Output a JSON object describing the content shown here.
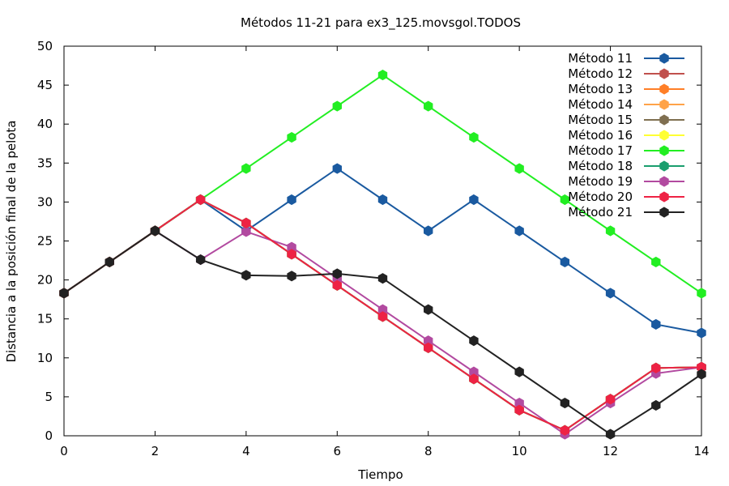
{
  "chart_data": {
    "type": "line",
    "title": "Métodos 11-21 para ex3_125.movsgol.TODOS",
    "xlabel": "Tiempo",
    "ylabel": "Distancia a la posición final de la pelota",
    "xlim": [
      0,
      14
    ],
    "ylim": [
      0,
      50
    ],
    "xticks": [
      0,
      2,
      4,
      6,
      8,
      10,
      12,
      14
    ],
    "yticks": [
      0,
      5,
      10,
      15,
      20,
      25,
      30,
      35,
      40,
      45,
      50
    ],
    "grid": false,
    "legend_position": "top-right",
    "series": [
      {
        "name": "Método 11",
        "color": "#1a5aa0",
        "points": [
          [
            0,
            18.3
          ],
          [
            1,
            22.3
          ],
          [
            2,
            26.3
          ],
          [
            3,
            30.3
          ],
          [
            4,
            26.3
          ],
          [
            5,
            30.3
          ],
          [
            6,
            34.3
          ],
          [
            7,
            30.3
          ],
          [
            8,
            26.3
          ],
          [
            9,
            30.3
          ],
          [
            10,
            26.3
          ],
          [
            11,
            22.3
          ],
          [
            12,
            18.3
          ],
          [
            13,
            14.3
          ],
          [
            14,
            13.2
          ]
        ]
      },
      {
        "name": "Método 12",
        "color": "#c0504d",
        "points": [
          [
            0,
            18.3
          ],
          [
            1,
            22.3
          ],
          [
            2,
            26.3
          ],
          [
            3,
            30.3
          ],
          [
            4,
            27.3
          ],
          [
            5,
            23.3
          ],
          [
            6,
            19.3
          ],
          [
            7,
            15.3
          ],
          [
            8,
            11.3
          ],
          [
            9,
            7.3
          ],
          [
            10,
            3.3
          ],
          [
            11,
            0.7
          ],
          [
            12,
            4.7
          ],
          [
            13,
            8.7
          ],
          [
            14,
            8.8
          ]
        ]
      },
      {
        "name": "Método 13",
        "color": "#ff7f27",
        "points": [
          [
            0,
            18.3
          ],
          [
            1,
            22.3
          ],
          [
            2,
            26.3
          ],
          [
            3,
            30.3
          ],
          [
            4,
            27.3
          ],
          [
            5,
            23.3
          ],
          [
            6,
            19.3
          ],
          [
            7,
            15.3
          ],
          [
            8,
            11.3
          ],
          [
            9,
            7.3
          ],
          [
            10,
            3.3
          ],
          [
            11,
            0.7
          ],
          [
            12,
            4.7
          ],
          [
            13,
            8.7
          ],
          [
            14,
            8.8
          ]
        ]
      },
      {
        "name": "Método 14",
        "color": "#ffa348",
        "points": [
          [
            0,
            18.3
          ],
          [
            1,
            22.3
          ],
          [
            2,
            26.3
          ],
          [
            3,
            30.3
          ],
          [
            4,
            27.3
          ],
          [
            5,
            23.3
          ],
          [
            6,
            19.3
          ],
          [
            7,
            15.3
          ],
          [
            8,
            11.3
          ],
          [
            9,
            7.3
          ],
          [
            10,
            3.3
          ],
          [
            11,
            0.7
          ],
          [
            12,
            4.7
          ],
          [
            13,
            8.7
          ],
          [
            14,
            8.8
          ]
        ]
      },
      {
        "name": "Método 15",
        "color": "#7f6f50",
        "points": [
          [
            0,
            18.3
          ],
          [
            1,
            22.3
          ],
          [
            2,
            26.3
          ],
          [
            3,
            30.3
          ],
          [
            4,
            27.3
          ],
          [
            5,
            23.3
          ],
          [
            6,
            19.3
          ],
          [
            7,
            15.3
          ],
          [
            8,
            11.3
          ],
          [
            9,
            7.3
          ],
          [
            10,
            3.3
          ],
          [
            11,
            0.7
          ],
          [
            12,
            4.7
          ],
          [
            13,
            8.7
          ],
          [
            14,
            8.8
          ]
        ]
      },
      {
        "name": "Método 16",
        "color": "#ffff33",
        "points": [
          [
            0,
            18.3
          ],
          [
            1,
            22.3
          ],
          [
            2,
            26.3
          ],
          [
            3,
            30.3
          ],
          [
            4,
            27.3
          ],
          [
            5,
            23.3
          ],
          [
            6,
            19.3
          ],
          [
            7,
            15.3
          ],
          [
            8,
            11.3
          ],
          [
            9,
            7.3
          ],
          [
            10,
            3.3
          ],
          [
            11,
            0.7
          ],
          [
            12,
            4.7
          ],
          [
            13,
            8.7
          ],
          [
            14,
            8.8
          ]
        ]
      },
      {
        "name": "Método 17",
        "color": "#22ee22",
        "points": [
          [
            0,
            18.3
          ],
          [
            1,
            22.3
          ],
          [
            2,
            26.3
          ],
          [
            3,
            30.3
          ],
          [
            4,
            34.3
          ],
          [
            5,
            38.3
          ],
          [
            6,
            42.3
          ],
          [
            7,
            46.3
          ],
          [
            8,
            42.3
          ],
          [
            9,
            38.3
          ],
          [
            10,
            34.3
          ],
          [
            11,
            30.3
          ],
          [
            12,
            26.3
          ],
          [
            13,
            22.3
          ],
          [
            14,
            18.3
          ]
        ]
      },
      {
        "name": "Método 18",
        "color": "#1a9e6e",
        "points": [
          [
            0,
            18.3
          ],
          [
            1,
            22.3
          ],
          [
            2,
            26.3
          ],
          [
            3,
            30.3
          ],
          [
            4,
            27.3
          ],
          [
            5,
            23.3
          ],
          [
            6,
            19.3
          ],
          [
            7,
            15.3
          ],
          [
            8,
            11.3
          ],
          [
            9,
            7.3
          ],
          [
            10,
            3.3
          ],
          [
            11,
            0.7
          ],
          [
            12,
            4.7
          ],
          [
            13,
            8.7
          ],
          [
            14,
            8.8
          ]
        ]
      },
      {
        "name": "Método 19",
        "color": "#b24aa0",
        "points": [
          [
            0,
            18.3
          ],
          [
            1,
            22.3
          ],
          [
            2,
            26.3
          ],
          [
            3,
            22.6
          ],
          [
            4,
            26.2
          ],
          [
            5,
            24.2
          ],
          [
            6,
            20.2
          ],
          [
            7,
            16.2
          ],
          [
            8,
            12.2
          ],
          [
            9,
            8.2
          ],
          [
            10,
            4.2
          ],
          [
            11,
            0.2
          ],
          [
            12,
            4.2
          ],
          [
            13,
            8.0
          ],
          [
            14,
            8.8
          ]
        ]
      },
      {
        "name": "Método 20",
        "color": "#ee2244",
        "points": [
          [
            0,
            18.3
          ],
          [
            1,
            22.3
          ],
          [
            2,
            26.3
          ],
          [
            3,
            30.3
          ],
          [
            4,
            27.3
          ],
          [
            5,
            23.3
          ],
          [
            6,
            19.3
          ],
          [
            7,
            15.3
          ],
          [
            8,
            11.3
          ],
          [
            9,
            7.3
          ],
          [
            10,
            3.3
          ],
          [
            11,
            0.7
          ],
          [
            12,
            4.7
          ],
          [
            13,
            8.7
          ],
          [
            14,
            8.8
          ]
        ]
      },
      {
        "name": "Método 21",
        "color": "#222222",
        "points": [
          [
            0,
            18.3
          ],
          [
            1,
            22.3
          ],
          [
            2,
            26.3
          ],
          [
            3,
            22.6
          ],
          [
            4,
            20.6
          ],
          [
            5,
            20.5
          ],
          [
            6,
            20.8
          ],
          [
            7,
            20.2
          ],
          [
            8,
            16.2
          ],
          [
            9,
            12.2
          ],
          [
            10,
            8.2
          ],
          [
            11,
            4.2
          ],
          [
            12,
            0.2
          ],
          [
            13,
            3.9
          ],
          [
            14,
            7.9
          ]
        ]
      }
    ]
  }
}
